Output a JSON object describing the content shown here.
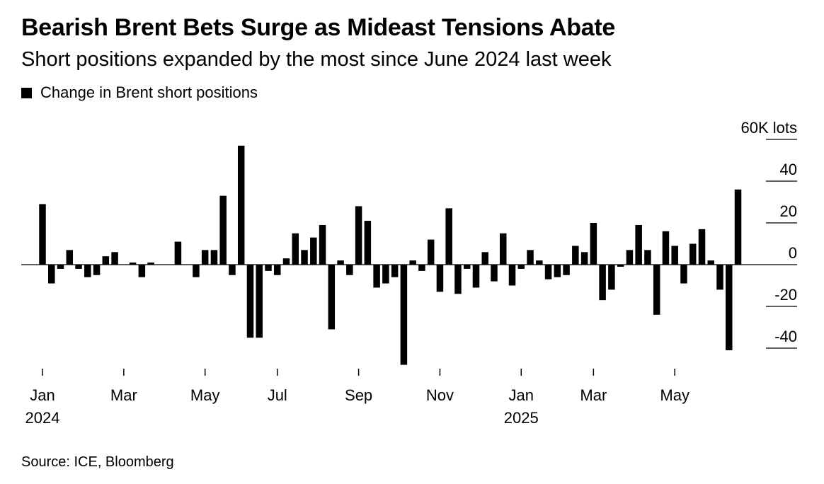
{
  "title": "Bearish Brent Bets Surge as Mideast Tensions Abate",
  "subtitle": "Short positions expanded by the most since June 2024 last week",
  "legend": {
    "label": "Change in Brent short positions",
    "color": "#000000"
  },
  "source": "Source: ICE, Bloomberg",
  "chart_data": {
    "type": "bar",
    "series": [
      {
        "name": "Change in Brent short positions",
        "color": "#000000",
        "values": [
          29,
          -9,
          -2,
          7,
          -2,
          -6,
          -5,
          4,
          6,
          0,
          1,
          -6,
          1,
          0,
          0,
          11,
          0,
          -6,
          7,
          7,
          33,
          -5,
          57,
          -35,
          -35,
          -3,
          -5,
          3,
          15,
          7,
          13,
          19,
          -31,
          2,
          -5,
          28,
          21,
          -11,
          -9,
          -6,
          -48,
          2,
          -3,
          12,
          -13,
          27,
          -14,
          -2,
          -11,
          6,
          -8,
          15,
          -10,
          -2,
          7,
          2,
          -7,
          -6,
          -5,
          9,
          6,
          20,
          -17,
          -12,
          -1,
          7,
          19,
          7,
          -24,
          16,
          9,
          -9,
          10,
          17,
          2,
          -12,
          -41,
          36
        ]
      }
    ],
    "y_axis": {
      "unit": "60K lots",
      "ticks": [
        {
          "value": 60,
          "label": "60K lots"
        },
        {
          "value": 40,
          "label": "40"
        },
        {
          "value": 20,
          "label": "20"
        },
        {
          "value": 0,
          "label": "0"
        },
        {
          "value": -20,
          "label": "-20"
        },
        {
          "value": -40,
          "label": "-40"
        }
      ],
      "ylim": [
        -50,
        60
      ]
    },
    "x_axis": {
      "ticks": [
        {
          "label": "Jan",
          "year": "2024",
          "index": 0
        },
        {
          "label": "Mar",
          "year": "",
          "index": 9
        },
        {
          "label": "May",
          "year": "",
          "index": 18
        },
        {
          "label": "Jul",
          "year": "",
          "index": 26
        },
        {
          "label": "Sep",
          "year": "",
          "index": 35
        },
        {
          "label": "Nov",
          "year": "",
          "index": 44
        },
        {
          "label": "Jan",
          "year": "2025",
          "index": 53
        },
        {
          "label": "Mar",
          "year": "",
          "index": 61
        },
        {
          "label": "May",
          "year": "",
          "index": 70
        }
      ]
    },
    "zero_line": true
  }
}
